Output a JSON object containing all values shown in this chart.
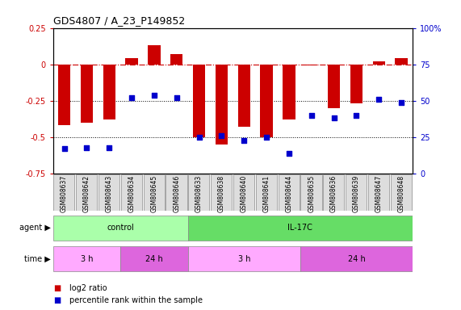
{
  "title": "GDS4807 / A_23_P149852",
  "samples": [
    "GSM808637",
    "GSM808642",
    "GSM808643",
    "GSM808634",
    "GSM808645",
    "GSM808646",
    "GSM808633",
    "GSM808638",
    "GSM808640",
    "GSM808641",
    "GSM808644",
    "GSM808635",
    "GSM808636",
    "GSM808639",
    "GSM808647",
    "GSM808648"
  ],
  "log2_ratio": [
    -0.42,
    -0.4,
    -0.38,
    0.04,
    0.13,
    0.07,
    -0.5,
    -0.55,
    -0.43,
    -0.5,
    -0.38,
    -0.005,
    -0.3,
    -0.27,
    0.02,
    0.04
  ],
  "percentile": [
    17,
    18,
    18,
    52,
    54,
    52,
    25,
    26,
    23,
    25,
    14,
    40,
    38,
    40,
    51,
    49
  ],
  "bar_color": "#cc0000",
  "dot_color": "#0000cc",
  "ylim_left": [
    -0.75,
    0.25
  ],
  "yticks_left": [
    -0.75,
    -0.5,
    -0.25,
    0,
    0.25
  ],
  "ytick_labels_left": [
    "-0.75",
    "-0.5",
    "-0.25",
    "0",
    "0.25"
  ],
  "ylim_right": [
    0,
    100
  ],
  "yticks_right": [
    0,
    25,
    50,
    75,
    100
  ],
  "ytick_labels_right": [
    "0",
    "25",
    "50",
    "75",
    "100%"
  ],
  "agent_groups": [
    {
      "label": "control",
      "start": 0,
      "end": 6,
      "color": "#aaffaa"
    },
    {
      "label": "IL-17C",
      "start": 6,
      "end": 16,
      "color": "#66dd66"
    }
  ],
  "time_groups": [
    {
      "label": "3 h",
      "start": 0,
      "end": 3,
      "color": "#ffaaff"
    },
    {
      "label": "24 h",
      "start": 3,
      "end": 6,
      "color": "#dd66dd"
    },
    {
      "label": "3 h",
      "start": 6,
      "end": 11,
      "color": "#ffaaff"
    },
    {
      "label": "24 h",
      "start": 11,
      "end": 16,
      "color": "#dd66dd"
    }
  ],
  "legend_items": [
    {
      "label": "log2 ratio",
      "color": "#cc0000"
    },
    {
      "label": "percentile rank within the sample",
      "color": "#0000cc"
    }
  ],
  "bar_width": 0.55,
  "dot_size": 25,
  "background_color": "#ffffff"
}
